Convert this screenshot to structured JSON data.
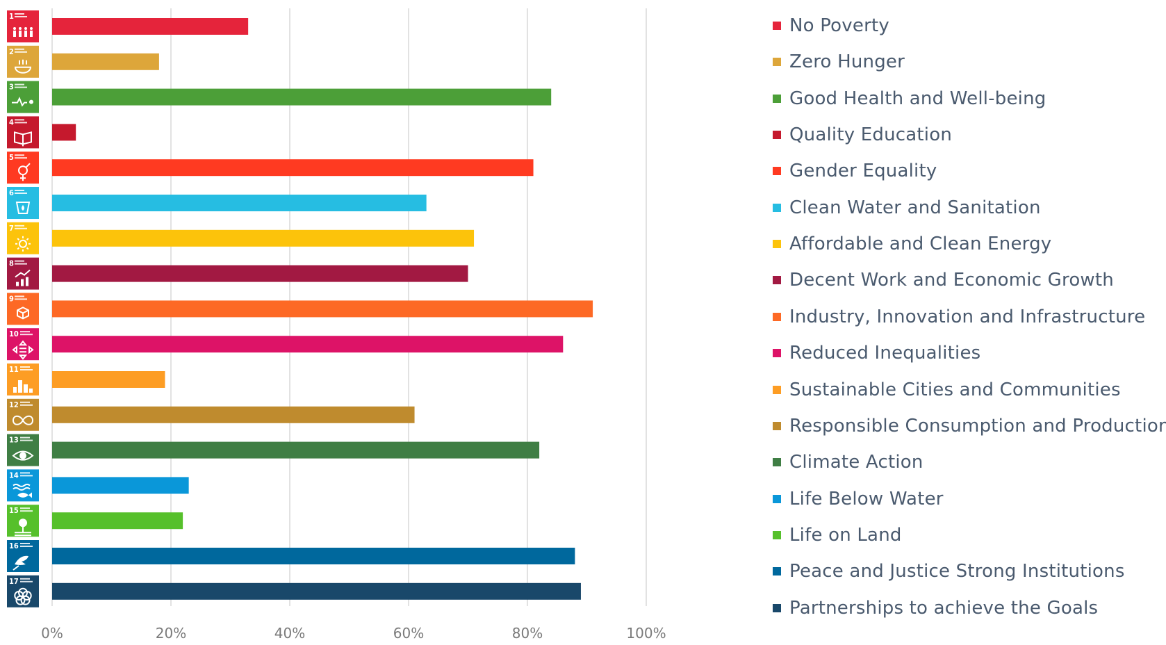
{
  "chart_data": {
    "type": "bar",
    "orientation": "horizontal",
    "categories": [
      "No Poverty",
      "Zero Hunger",
      "Good Health and Well-being",
      "Quality Education",
      "Gender Equality",
      "Clean Water and Sanitation",
      "Affordable and Clean Energy",
      "Decent Work and Economic Growth",
      "Industry, Innovation and Infrastructure",
      "Reduced Inequalities",
      "Sustainable Cities and Communities",
      "Responsible Consumption and Production",
      "Climate Action",
      "Life Below Water",
      "Life on Land",
      "Peace and Justice Strong Institutions",
      "Partnerships to achieve the Goals"
    ],
    "values": [
      33,
      18,
      84,
      4,
      81,
      63,
      71,
      70,
      91,
      86,
      19,
      61,
      82,
      23,
      22,
      88,
      89
    ],
    "colors": [
      "#e5243b",
      "#dda63a",
      "#4c9f38",
      "#c5192d",
      "#ff3a21",
      "#26bde2",
      "#fcc30b",
      "#a21942",
      "#fd6925",
      "#dd1367",
      "#fd9d24",
      "#bf8b2e",
      "#3f7e44",
      "#0a97d9",
      "#56c02b",
      "#00689d",
      "#19486a"
    ],
    "sdg_numbers": [
      "1",
      "2",
      "3",
      "4",
      "5",
      "6",
      "7",
      "8",
      "9",
      "10",
      "11",
      "12",
      "13",
      "14",
      "15",
      "16",
      "17"
    ],
    "sdg_icons": [
      "people-icon",
      "bowl-icon",
      "heartbeat-icon",
      "book-icon",
      "gender-icon",
      "water-drop-icon",
      "sun-icon",
      "growth-chart-icon",
      "cubes-icon",
      "equality-arrows-icon",
      "city-icon",
      "infinity-icon",
      "eye-globe-icon",
      "fish-icon",
      "tree-icon",
      "dove-icon",
      "rings-icon"
    ],
    "xlim": [
      0,
      100
    ],
    "x_ticks": [
      "0%",
      "20%",
      "40%",
      "60%",
      "80%",
      "100%"
    ],
    "grid": "vertical",
    "legend": "right",
    "title": "",
    "xlabel": "",
    "ylabel": ""
  }
}
